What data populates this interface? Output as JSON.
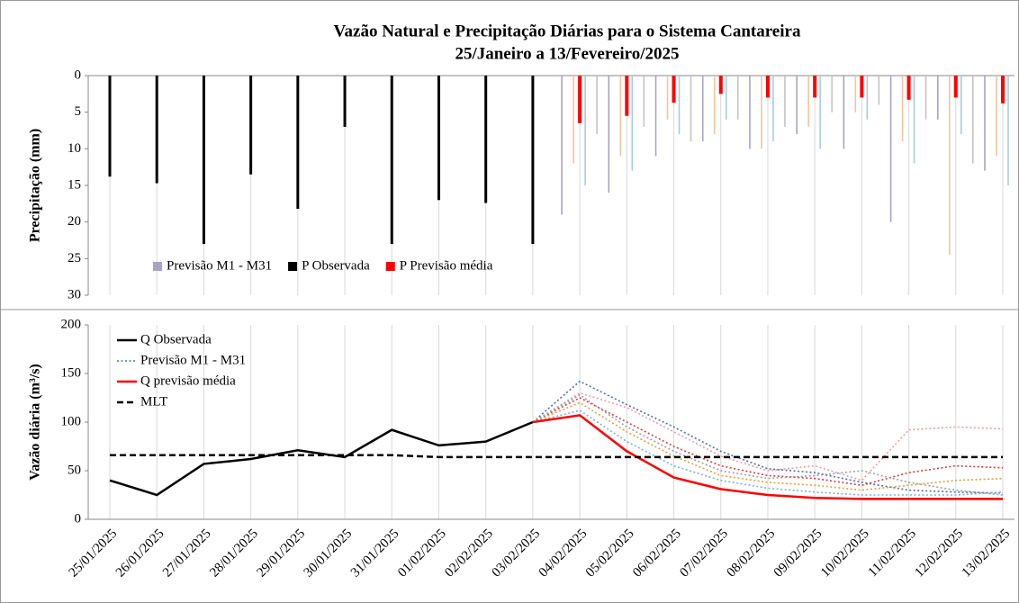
{
  "chart_data": [
    {
      "type": "bar",
      "title": "Vazão Natural e Precipitação Diárias para o Sistema Cantareira",
      "subtitle": "25/Janeiro a 13/Fevereiro/2025",
      "y_label": "Precipitação (mm)",
      "y_inverted": true,
      "ylim": [
        0,
        30
      ],
      "yticks": [
        0,
        5,
        10,
        15,
        20,
        25,
        30
      ],
      "grid": true,
      "legend": "bottom-left",
      "series": [
        {
          "name": "Previsão M1 - M31",
          "color": "#a9a3c4",
          "values": [
            null,
            null,
            null,
            null,
            null,
            null,
            null,
            null,
            null,
            null,
            19,
            16,
            11,
            9,
            10,
            8,
            10,
            20,
            6,
            13
          ]
        },
        {
          "color": "#f2c4a0",
          "values": [
            null,
            null,
            null,
            null,
            null,
            null,
            null,
            null,
            null,
            null,
            12,
            11,
            6,
            8,
            10,
            7,
            5,
            9,
            24.5,
            11
          ]
        },
        {
          "color": "#a8cce0",
          "values": [
            null,
            null,
            null,
            null,
            null,
            null,
            null,
            null,
            null,
            null,
            15,
            13,
            8,
            6,
            9,
            10,
            6,
            12,
            8,
            15
          ]
        },
        {
          "color": "#c4c4c4",
          "values": [
            null,
            null,
            null,
            null,
            null,
            null,
            null,
            null,
            null,
            null,
            8,
            7,
            9,
            6,
            7,
            5,
            4,
            6,
            12,
            14
          ]
        },
        {
          "name": "P Observada",
          "color": "#000000",
          "values": [
            13.8,
            14.7,
            23,
            13.5,
            18.2,
            7,
            23,
            17,
            17.4,
            23,
            null,
            null,
            null,
            null,
            null,
            null,
            null,
            null,
            null,
            null
          ]
        },
        {
          "name": "P Previsão média",
          "color": "#ff0000",
          "values": [
            null,
            null,
            null,
            null,
            null,
            null,
            null,
            null,
            null,
            null,
            6.5,
            5.5,
            3.7,
            2.5,
            3,
            3,
            3,
            3.3,
            3,
            3.8
          ]
        }
      ]
    },
    {
      "type": "line",
      "y_label": "Vazão diária (m³/s)",
      "categories": [
        "25/01/2025",
        "26/01/2025",
        "27/01/2025",
        "28/01/2025",
        "29/01/2025",
        "30/01/2025",
        "31/01/2025",
        "01/02/2025",
        "02/02/2025",
        "03/02/2025",
        "04/02/2025",
        "05/02/2025",
        "06/02/2025",
        "07/02/2025",
        "08/02/2025",
        "09/02/2025",
        "10/02/2025",
        "11/02/2025",
        "12/02/2025",
        "13/02/2025"
      ],
      "ylim": [
        0,
        200
      ],
      "yticks": [
        0,
        50,
        100,
        150,
        200
      ],
      "grid": true,
      "legend": "top-left",
      "series": [
        {
          "name": "Q Observada",
          "color": "#000000",
          "dash": "solid",
          "values": [
            40,
            25,
            57,
            62,
            71,
            64,
            92,
            76,
            80,
            100,
            null,
            null,
            null,
            null,
            null,
            null,
            null,
            null,
            null,
            null
          ]
        },
        {
          "name": "Previsão M1 - M31",
          "color": "#4f6fa8",
          "dash": "dotted",
          "values": [
            null,
            null,
            null,
            null,
            null,
            null,
            null,
            null,
            null,
            100,
            142,
            118,
            95,
            70,
            52,
            48,
            38,
            30,
            28,
            27
          ]
        },
        {
          "color": "#e8a0a0",
          "dash": "dotted",
          "values": [
            null,
            null,
            null,
            null,
            null,
            null,
            null,
            null,
            null,
            100,
            130,
            115,
            90,
            65,
            50,
            55,
            40,
            92,
            95,
            93
          ]
        },
        {
          "color": "#d04040",
          "dash": "dotted",
          "values": [
            null,
            null,
            null,
            null,
            null,
            null,
            null,
            null,
            null,
            100,
            125,
            100,
            75,
            55,
            45,
            42,
            35,
            48,
            55,
            53
          ]
        },
        {
          "color": "#e0a040",
          "dash": "dotted",
          "values": [
            null,
            null,
            null,
            null,
            null,
            null,
            null,
            null,
            null,
            100,
            120,
            90,
            65,
            45,
            38,
            35,
            30,
            35,
            40,
            42
          ]
        },
        {
          "color": "#7ab0d8",
          "dash": "dotted",
          "values": [
            null,
            null,
            null,
            null,
            null,
            null,
            null,
            null,
            null,
            100,
            112,
            80,
            55,
            40,
            32,
            28,
            25,
            25,
            25,
            28
          ]
        },
        {
          "color": "#9aa0a8",
          "dash": "dotted",
          "values": [
            null,
            null,
            null,
            null,
            null,
            null,
            null,
            null,
            null,
            100,
            128,
            95,
            70,
            50,
            42,
            45,
            50,
            38,
            30,
            25
          ]
        },
        {
          "name": "Q previsão média",
          "color": "#ff0000",
          "dash": "solid",
          "values": [
            null,
            null,
            null,
            null,
            null,
            null,
            null,
            null,
            null,
            100,
            107,
            70,
            43,
            31,
            25,
            22,
            21,
            21,
            21,
            21
          ]
        },
        {
          "name": "MLT",
          "color": "#000000",
          "dash": "dashed",
          "values": [
            66,
            66,
            66,
            66,
            66,
            66,
            66,
            64,
            64,
            64,
            64,
            64,
            64,
            64,
            64,
            64,
            64,
            64,
            64,
            64
          ]
        }
      ]
    }
  ]
}
